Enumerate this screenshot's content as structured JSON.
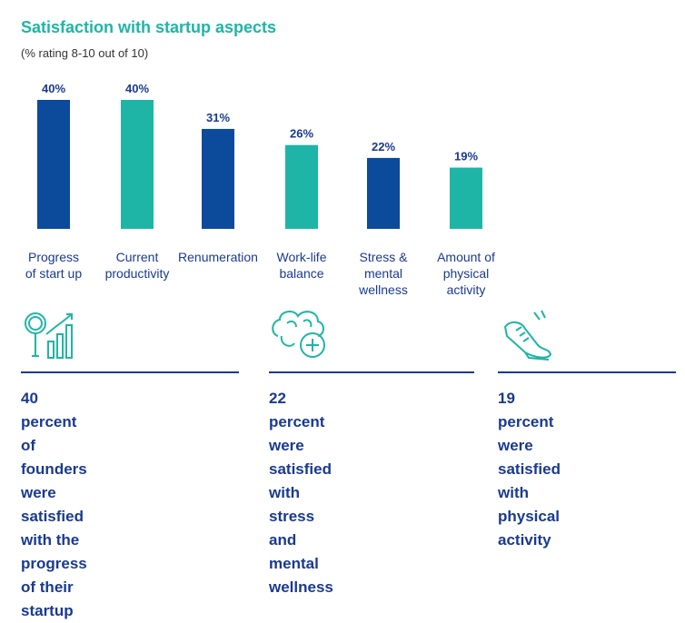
{
  "chart_data": {
    "type": "bar",
    "title": "Satisfaction with startup aspects",
    "subtitle": "(% rating 8-10 out of 10)",
    "categories": [
      [
        "Progress",
        "of start up"
      ],
      [
        "Current",
        "productivity"
      ],
      [
        "Renumeration"
      ],
      [
        "Work-life",
        "balance"
      ],
      [
        "Stress &",
        "mental",
        "wellness"
      ],
      [
        "Amount of",
        "physical",
        "activity"
      ]
    ],
    "values": [
      40,
      40,
      31,
      26,
      22,
      19
    ],
    "value_labels": [
      "40%",
      "40%",
      "31%",
      "26%",
      "22%",
      "19%"
    ],
    "bar_colors": [
      "#0c4a9c",
      "#1fb5a6",
      "#0c4a9c",
      "#1fb5a6",
      "#0c4a9c",
      "#1fb5a6"
    ],
    "ylim": [
      0,
      40
    ],
    "grid": false
  },
  "stats": [
    {
      "icon": "magnifier-growth-chart-icon",
      "lines": [
        "40 percent of founders",
        "were satisfied with the",
        "progress of their startup"
      ]
    },
    {
      "icon": "brain-plus-icon",
      "lines": [
        "22 percent were",
        "satisfied with stress",
        "and mental wellness"
      ]
    },
    {
      "icon": "running-shoe-icon",
      "lines": [
        "19 percent were",
        "satisfied with",
        "physical activity"
      ]
    }
  ],
  "colors": {
    "accent_teal": "#1fb5a6",
    "navy": "#0c4a9c",
    "text_navy": "#1a3a8f"
  }
}
